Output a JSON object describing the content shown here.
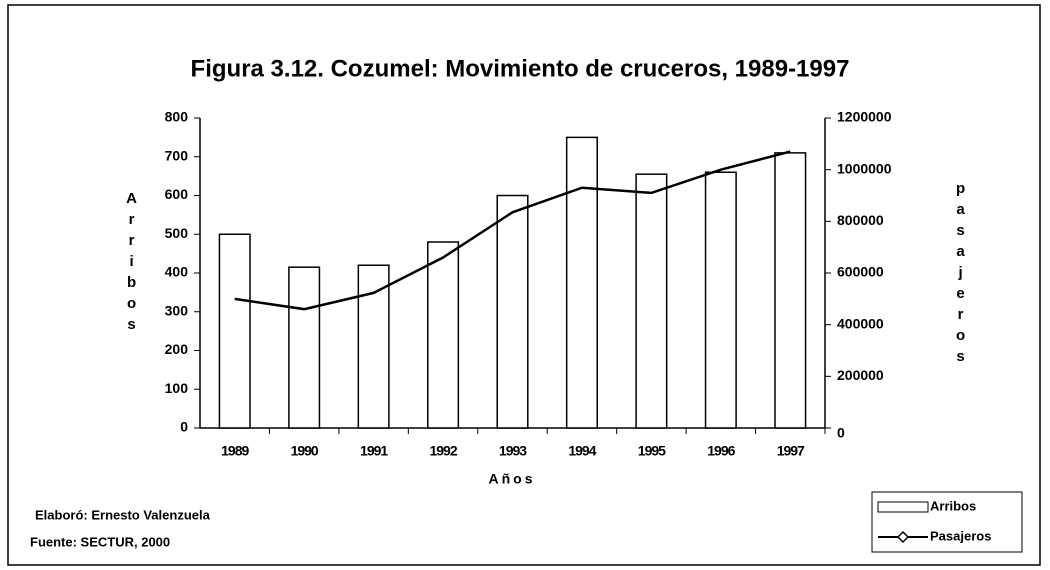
{
  "chart_data": {
    "type": "bar",
    "title": "Figura 3.12. Cozumel: Movimiento de cruceros, 1989-1997",
    "x_label": "Años",
    "y_label": "Arribos",
    "y2_label": "pasajeros",
    "categories": [
      "1989",
      "1990",
      "1991",
      "1992",
      "1993",
      "1994",
      "1995",
      "1996",
      "1997"
    ],
    "series": [
      {
        "name": "Arribos",
        "type": "bar",
        "color": "#ffffff",
        "values": [
          500,
          415,
          420,
          480,
          600,
          750,
          655,
          660,
          710
        ]
      },
      {
        "name": "Pasajeros",
        "type": "line",
        "axis": "y2",
        "color": "#000000",
        "values": [
          500000,
          460000,
          523000,
          660000,
          835000,
          930000,
          910000,
          1000000,
          1070000
        ]
      }
    ],
    "ylim": [
      0,
      800
    ],
    "yticks": [
      0,
      100,
      200,
      300,
      400,
      500,
      600,
      700,
      800
    ],
    "y2lim": [
      0,
      1200000
    ],
    "y2ticks": [
      0,
      200000,
      400000,
      600000,
      800000,
      1000000,
      1200000
    ],
    "legend": "bottom-right",
    "notes": [
      "Elaboró: Ernesto Valenzuela",
      "Fuente: SECTUR, 2000"
    ]
  }
}
